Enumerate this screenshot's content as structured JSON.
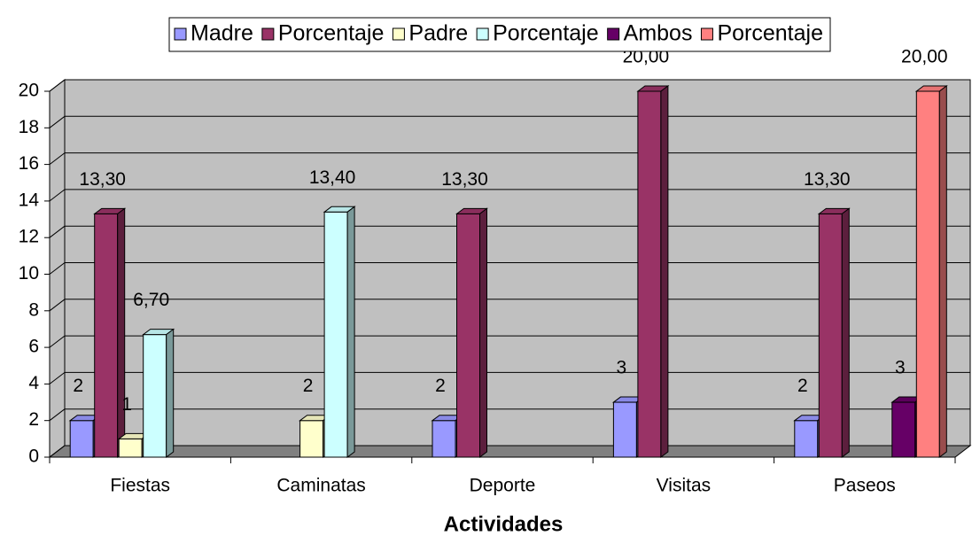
{
  "chart_data": {
    "type": "bar",
    "categories": [
      "Fiestas",
      "Caminatas",
      "Deporte",
      "Visitas",
      "Paseos"
    ],
    "x_label": "Actividades",
    "series": [
      {
        "name": "Madre",
        "color": "#9999ff",
        "values": [
          2,
          null,
          2,
          3,
          2
        ]
      },
      {
        "name": "Porcentaje",
        "color": "#993366",
        "values": [
          13.3,
          null,
          13.3,
          20,
          13.3
        ],
        "value_labels": [
          "13,30",
          null,
          "13,30",
          "20,00",
          "13,30"
        ]
      },
      {
        "name": "Padre",
        "color": "#ffffcc",
        "values": [
          1,
          2,
          null,
          null,
          null
        ]
      },
      {
        "name": "Porcentaje",
        "color": "#ccffff",
        "values": [
          6.7,
          13.4,
          null,
          null,
          null
        ],
        "value_labels": [
          "6,70",
          "13,40",
          null,
          null,
          null
        ]
      },
      {
        "name": "Ambos",
        "color": "#660066",
        "values": [
          null,
          null,
          null,
          null,
          3
        ]
      },
      {
        "name": "Porcentaje",
        "color": "#ff8080",
        "values": [
          null,
          null,
          null,
          null,
          20
        ],
        "value_labels": [
          null,
          null,
          null,
          null,
          "20,00"
        ]
      }
    ],
    "ylim": [
      0,
      20
    ],
    "yticks": [
      0,
      2,
      4,
      6,
      8,
      10,
      12,
      14,
      16,
      18,
      20
    ],
    "grid": true,
    "legend": "top"
  }
}
